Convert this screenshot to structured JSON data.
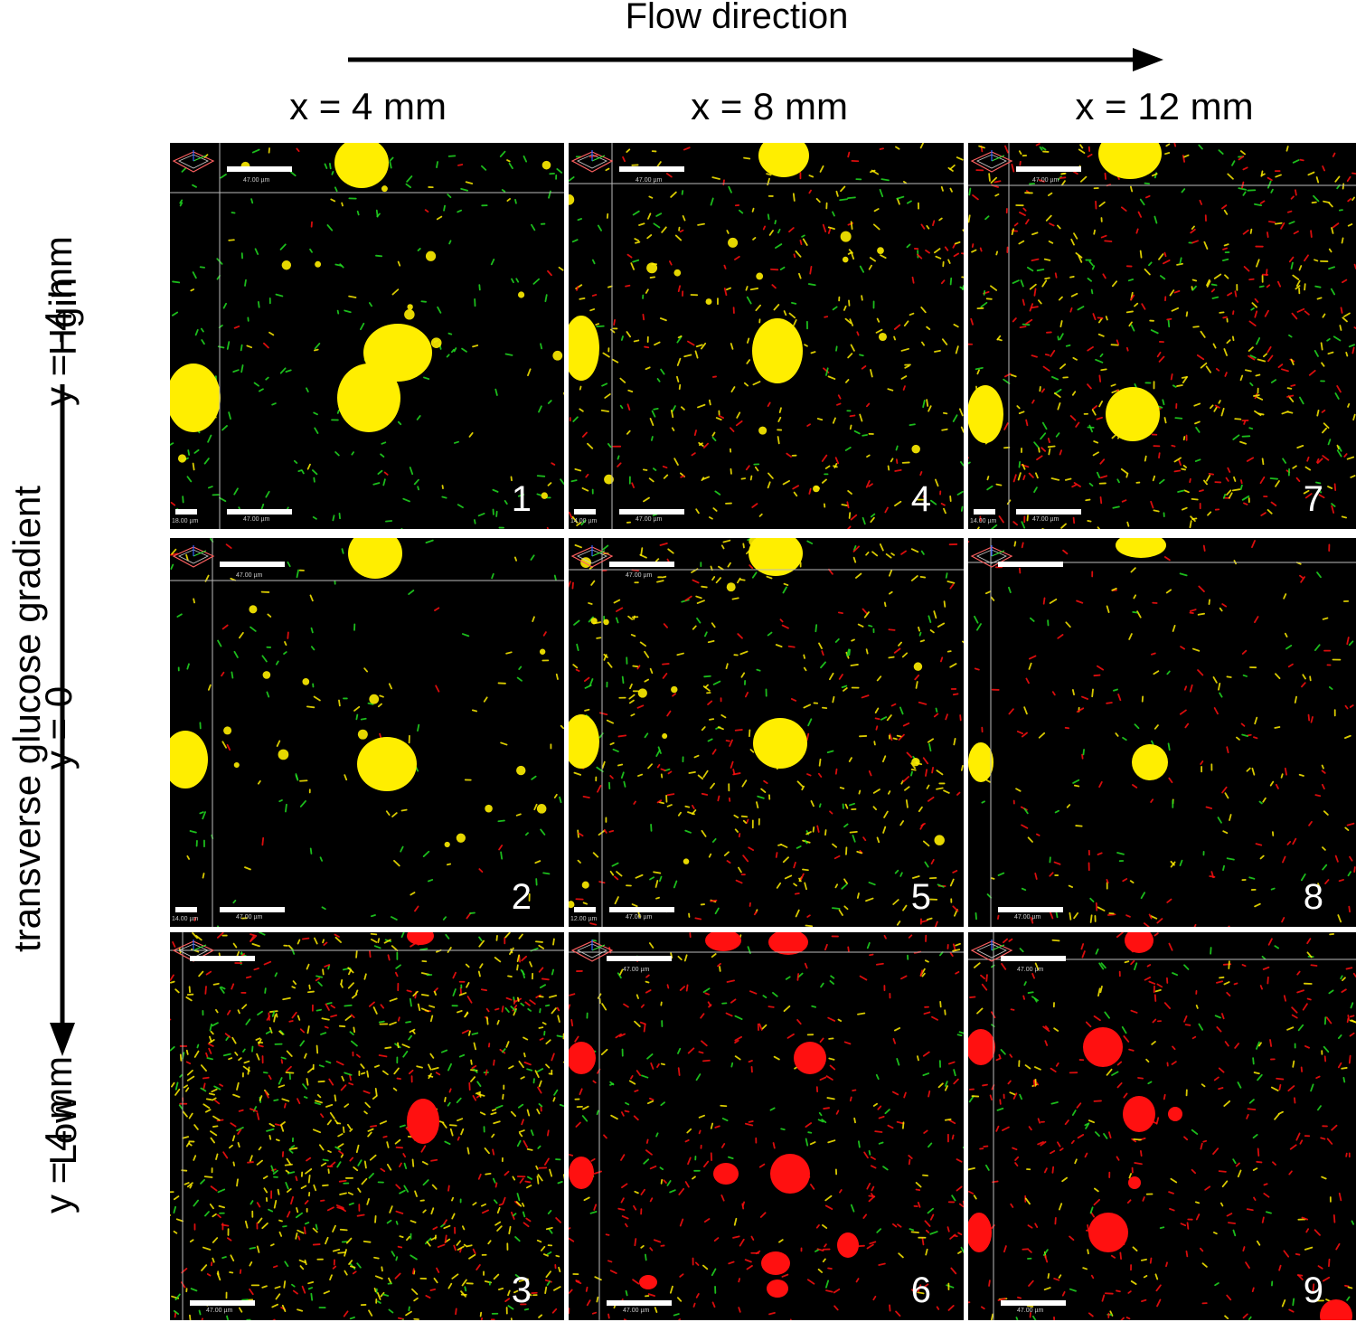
{
  "figure": {
    "flow_title": "Flow direction",
    "columns": [
      "x = 4 mm",
      "x = 8 mm",
      "x = 12 mm"
    ],
    "rows": [
      "y = -4 mm",
      "y = 0",
      "y = 4 mm"
    ],
    "gradient_label": "transverse glucose gradient",
    "high_label": "Hgih",
    "low_label": "Low",
    "colors": {
      "yellow": "#ffee00",
      "red": "#ff1010",
      "green": "#22dd22",
      "background": "#000000"
    }
  },
  "panels": [
    {
      "number": "1",
      "scale_top": "47.00 µm",
      "scale_bottom": "47.00 µm",
      "scale_side": "18.00 µm",
      "dominant_color": "yellow"
    },
    {
      "number": "2",
      "scale_top": "47.00 µm",
      "scale_bottom": "47.00 µm",
      "scale_side": "14.00 µm",
      "dominant_color": "yellow"
    },
    {
      "number": "3",
      "scale_top": "",
      "scale_bottom": "47.00 µm",
      "scale_side": "",
      "dominant_color": "red"
    },
    {
      "number": "4",
      "scale_top": "47.00 µm",
      "scale_bottom": "47.00 µm",
      "scale_side": "14.00 µm",
      "dominant_color": "yellow"
    },
    {
      "number": "5",
      "scale_top": "47.00 µm",
      "scale_bottom": "47.00 µm",
      "scale_side": "12.00 µm",
      "dominant_color": "yellow"
    },
    {
      "number": "6",
      "scale_top": "47.00 µm",
      "scale_bottom": "47.00 µm",
      "scale_side": "",
      "dominant_color": "red"
    },
    {
      "number": "7",
      "scale_top": "47.00 µm",
      "scale_bottom": "47.00 µm",
      "scale_side": "14.00 µm",
      "dominant_color": "yellow"
    },
    {
      "number": "8",
      "scale_top": "",
      "scale_bottom": "47.00 µm",
      "scale_side": "",
      "dominant_color": "yellow"
    },
    {
      "number": "9",
      "scale_top": "47.00 µm",
      "scale_bottom": "47.00 µm",
      "scale_side": "",
      "dominant_color": "red"
    }
  ]
}
